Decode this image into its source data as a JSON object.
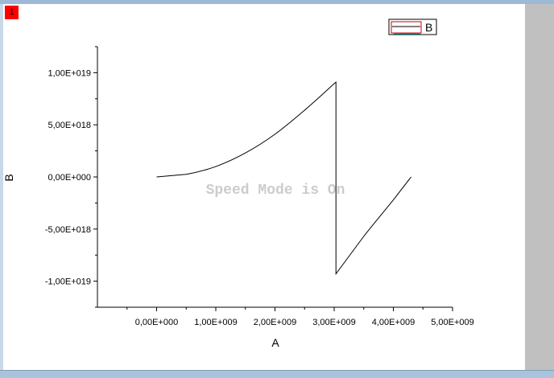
{
  "layer_tag": "1",
  "watermark": "Speed Mode is On",
  "colors": {
    "series": "#000000",
    "legend_box_border": "#cc0000",
    "legend_box_fill_line": "#00cccc",
    "side_strip": "#c0c0c0",
    "layer_tag": "#ff0000"
  },
  "chart_data": {
    "type": "line",
    "title": "",
    "xlabel": "A",
    "ylabel": "B",
    "xlim": [
      -1000000000.0,
      5000000000.0
    ],
    "ylim": [
      -1.25e+19,
      1.25e+19
    ],
    "x_ticks": [
      0,
      1000000000.0,
      2000000000.0,
      3000000000.0,
      4000000000.0,
      5000000000.0
    ],
    "x_tick_labels": [
      "0,00E+000",
      "1,00E+009",
      "2,00E+009",
      "3,00E+009",
      "4,00E+009",
      "5,00E+009"
    ],
    "y_ticks": [
      1e+19,
      5e+18,
      0,
      -5e+18,
      -1e+19
    ],
    "y_tick_labels": [
      "1,00E+019",
      "5,00E+018",
      "0,00E+000",
      "-5,00E+018",
      "-1,00E+019"
    ],
    "grid": false,
    "legend": {
      "position": "top-right",
      "entries": [
        "B"
      ]
    },
    "series": [
      {
        "name": "B",
        "x": [
          0,
          500000000.0,
          1000000000.0,
          1500000000.0,
          2000000000.0,
          2500000000.0,
          3000000000.0,
          3030000000.0,
          3030000000.0,
          3500000000.0,
          4000000000.0,
          4300000000.0
        ],
        "y": [
          0,
          2.5e+17,
          1e+18,
          2.3e+18,
          4.1e+18,
          6.4e+18,
          8.95e+18,
          9.1e+18,
          -9.3e+18,
          -5.7e+18,
          -2.2e+18,
          0
        ]
      }
    ]
  }
}
